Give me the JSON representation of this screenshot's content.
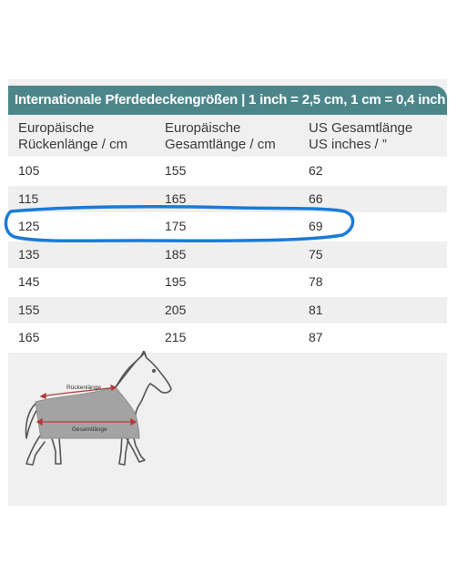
{
  "table": {
    "title": "Internationale Pferdedeckengrößen | 1 inch = 2,5 cm, 1 cm = 0,4 inch",
    "headers": [
      "Europäische Rückenlänge / cm",
      "Europäische Gesamtlänge / cm",
      "US Gesamtlänge US inches / ”"
    ],
    "rows": [
      [
        "105",
        "155",
        "62"
      ],
      [
        "115",
        "165",
        "66"
      ],
      [
        "125",
        "175",
        "69"
      ],
      [
        "135",
        "185",
        "75"
      ],
      [
        "145",
        "195",
        "78"
      ],
      [
        "155",
        "205",
        "81"
      ],
      [
        "165",
        "215",
        "87"
      ]
    ],
    "highlighted_row": 2
  },
  "diagram": {
    "back_length_label": "Rückenlänge",
    "total_length_label": "Gesamtlänge"
  },
  "colors": {
    "header_teal": "#4c868b",
    "highlight_blue": "#1a7bd6",
    "measure_red": "#b23a3a",
    "blanket_gray": "#a3a3a3"
  }
}
